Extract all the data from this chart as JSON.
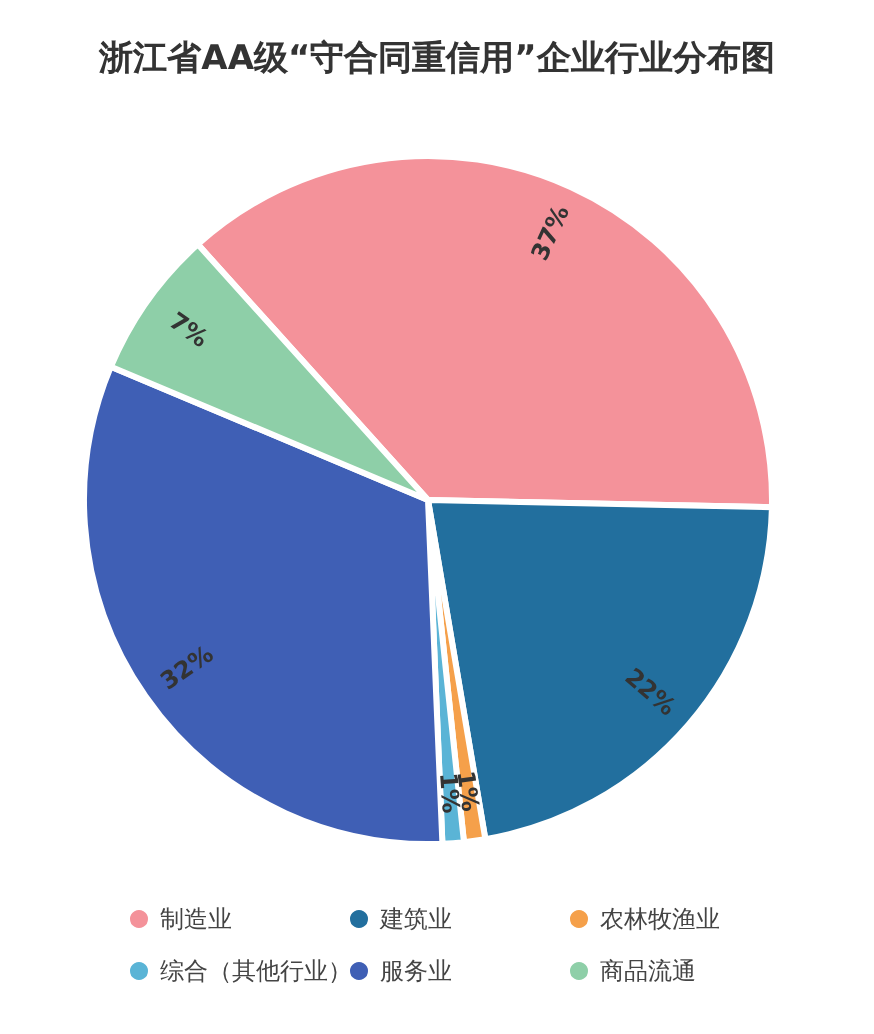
{
  "chart_data": {
    "type": "pie",
    "title": "浙江省AA级“守合同重信用”企业行业分布图",
    "categories": [
      "制造业",
      "建筑业",
      "农林牧渔业",
      "综合（其他行业）",
      "服务业",
      "商品流通"
    ],
    "values": [
      37,
      22,
      1,
      1,
      32,
      7
    ],
    "colors": [
      "#f4929a",
      "#226f9e",
      "#f5a04a",
      "#5ab4d6",
      "#3f5fb5",
      "#8ecfa8"
    ],
    "value_labels": [
      "37%",
      "22%",
      "1%",
      "1%",
      "32%",
      "7%"
    ],
    "legend": "bottom"
  }
}
